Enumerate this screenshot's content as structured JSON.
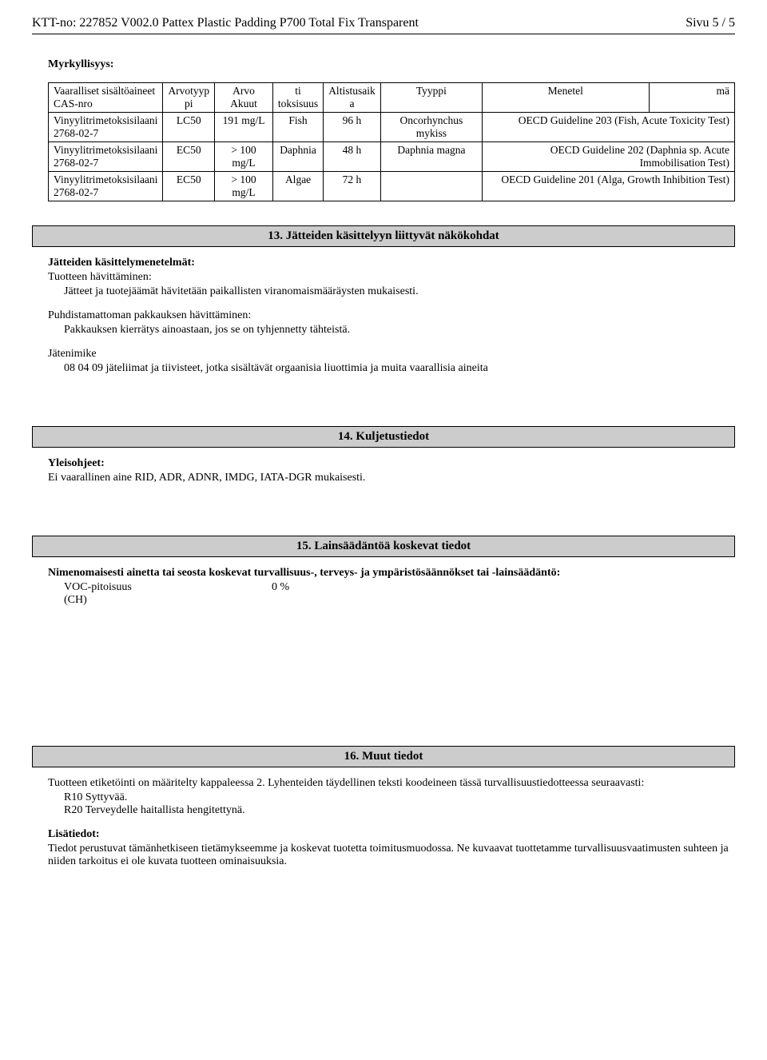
{
  "header": {
    "left": "KTT-no: 227852   V002.0   Pattex Plastic Padding P700 Total Fix Transparent",
    "right": "Sivu 5 / 5"
  },
  "toxicity_section_title": "Myrkyllisyys:",
  "table": {
    "columns": [
      "Vaaralliset sisältöaineet\nCAS-nro",
      "Arvotyyp\npi",
      "Arvo Akuut",
      "ti\ntoksisuus",
      "Altistusaik\na",
      "Tyyppi",
      "Menetel",
      "mä"
    ],
    "rows": [
      {
        "substance": "Vinyylitrimetoksisilaani\n2768-02-7",
        "type": "LC50",
        "value": "191 mg/L",
        "species": "Fish",
        "time": "96 h",
        "test_species": "Oncorhynchus mykiss",
        "method": "OECD Guideline 203 (Fish, Acute Toxicity Test)"
      },
      {
        "substance": "Vinyylitrimetoksisilaani\n2768-02-7",
        "type": "EC50",
        "value": "> 100 mg/L",
        "species": "Daphnia",
        "time": "48 h",
        "test_species": "Daphnia magna",
        "method": "OECD Guideline 202 (Daphnia sp. Acute Immobilisation Test)"
      },
      {
        "substance": "Vinyylitrimetoksisilaani\n2768-02-7",
        "type": "EC50",
        "value": "> 100 mg/L",
        "species": "Algae",
        "time": "72 h",
        "test_species": "",
        "method": "OECD Guideline 201 (Alga, Growth Inhibition Test)"
      }
    ]
  },
  "section13": {
    "title": "13. Jätteiden käsittelyyn liittyvät näkökohdat",
    "methods_title": "Jätteiden käsittelymenetelmät:",
    "disposal_title": "Tuotteen hävittäminen:",
    "disposal_text": "Jätteet ja tuotejäämät hävitetään paikallisten viranomaismääräysten mukaisesti.",
    "packaging_title": "Puhdistamattoman pakkauksen hävittäminen:",
    "packaging_text": "Pakkauksen kierrätys ainoastaan, jos se on tyhjennetty tähteistä.",
    "waste_title": "Jätenimike",
    "waste_text": "08 04 09 jäteliimat ja tiivisteet, jotka sisältävät orgaanisia liuottimia ja muita vaarallisia aineita"
  },
  "section14": {
    "title": "14. Kuljetustiedot",
    "general_title": "Yleisohjeet:",
    "general_text": "Ei vaarallinen aine RID, ADR, ADNR, IMDG, IATA-DGR mukaisesti."
  },
  "section15": {
    "title": "15. Lainsäädäntöä koskevat tiedot",
    "regulation_title": "Nimenomaisesti ainetta tai seosta koskevat turvallisuus-, terveys- ja ympäristösäännökset tai -lainsäädäntö:",
    "voc_label": "VOC-pitoisuus\n(CH)",
    "voc_value": "0 %"
  },
  "section16": {
    "title": "16. Muut tiedot",
    "labeling_text": "Tuotteen etiketöinti on määritelty kappaleessa 2. Lyhenteiden täydellinen teksti koodeineen tässä turvallisuustiedotteessa seuraavasti:",
    "r10": "R10 Syttyvää.",
    "r20": "R20 Terveydelle haitallista hengitettynä.",
    "additional_title": "Lisätiedot:",
    "additional_text": "Tiedot perustuvat tämänhetkiseen tietämykseemme ja koskevat tuotetta toimitusmuodossa. Ne kuvaavat tuottetamme turvallisuusvaatimusten suhteen ja niiden tarkoitus ei ole kuvata tuotteen ominaisuuksia."
  }
}
